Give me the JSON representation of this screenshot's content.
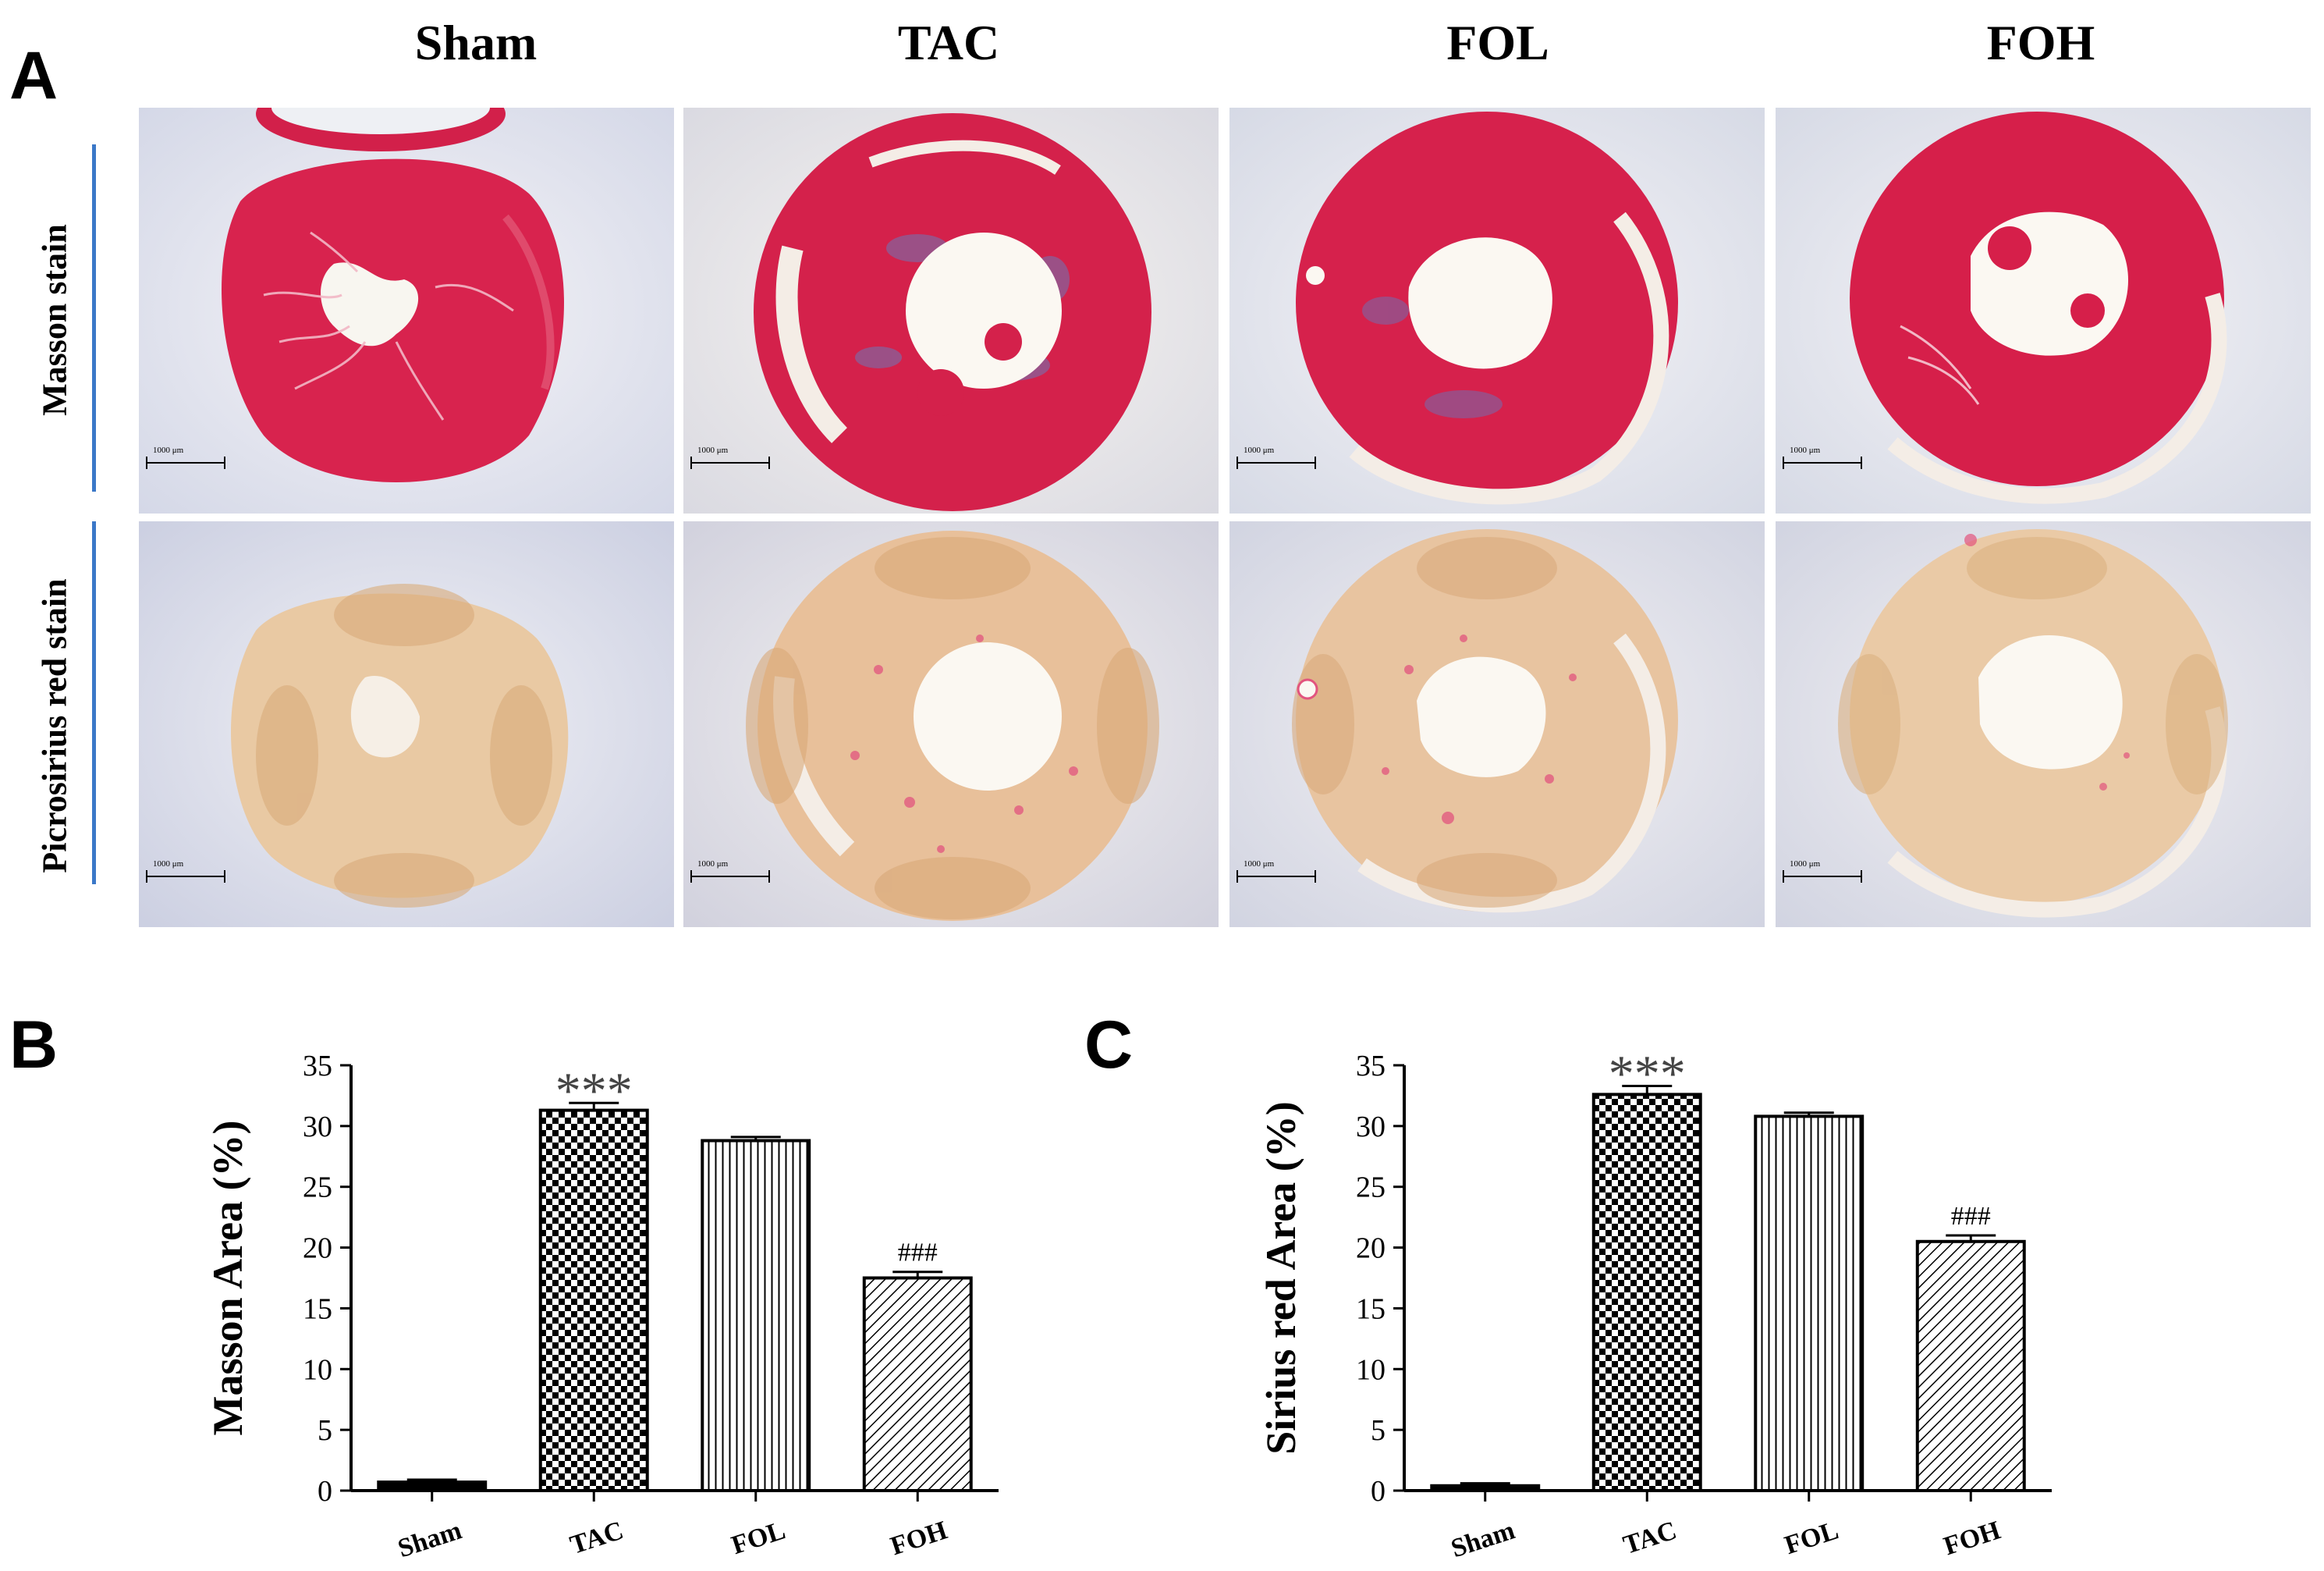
{
  "figure": {
    "panel_a": {
      "letter": "A",
      "columns": [
        "Sham",
        "TAC",
        "FOL",
        "FOH"
      ],
      "rows": [
        "Masson stain",
        "Picrosirius red stain"
      ],
      "scale_bar_label": "1000 μm"
    }
  },
  "chart_data": [
    {
      "panel": "B",
      "type": "bar",
      "categories": [
        "Sham",
        "TAC",
        "FOL",
        "FOH"
      ],
      "values": [
        0.7,
        31.3,
        28.8,
        17.5
      ],
      "errors": [
        0.2,
        0.6,
        0.3,
        0.5
      ],
      "annotations": [
        "",
        "***",
        "",
        "###"
      ],
      "patterns": [
        "solid",
        "checker",
        "vertical",
        "diagonal"
      ],
      "ylabel": "Masson Area (%)",
      "xlabel": "",
      "ylim": [
        0,
        35
      ],
      "yticks": [
        "0",
        "5",
        "10",
        "15",
        "20",
        "25",
        "30",
        "35"
      ],
      "title": ""
    },
    {
      "panel": "C",
      "type": "bar",
      "categories": [
        "Sham",
        "TAC",
        "FOL",
        "FOH"
      ],
      "values": [
        0.4,
        32.6,
        30.8,
        20.5
      ],
      "errors": [
        0.2,
        0.7,
        0.3,
        0.5
      ],
      "annotations": [
        "",
        "***",
        "",
        "###"
      ],
      "patterns": [
        "solid",
        "checker",
        "vertical",
        "diagonal"
      ],
      "ylabel": "Sirius red Area (%)",
      "xlabel": "",
      "ylim": [
        0,
        35
      ],
      "yticks": [
        "0",
        "5",
        "10",
        "15",
        "20",
        "25",
        "30",
        "35"
      ],
      "title": ""
    }
  ]
}
